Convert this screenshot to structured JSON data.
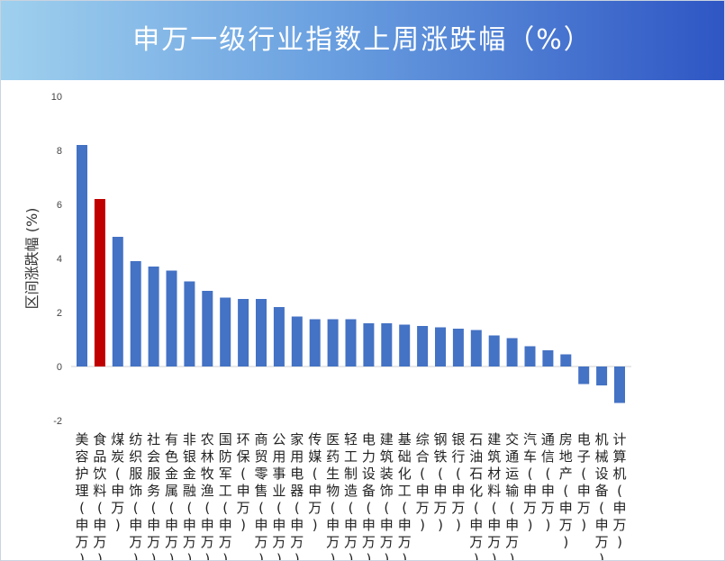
{
  "header": {
    "title": "申万一级行业指数上周涨跌幅（%）"
  },
  "colors": {
    "bar_default": "#4472c4",
    "bar_highlight": "#c00000",
    "header_start": "#9fd0ee",
    "header_end": "#2f56c4"
  },
  "chart_data": {
    "type": "bar",
    "title": "申万一级行业指数上周涨跌幅（%）",
    "ylabel": "区间涨跌幅 (%)",
    "xlabel": "",
    "ylim": [
      -2,
      10
    ],
    "yticks": [
      "-2",
      "0",
      "2",
      "4",
      "6",
      "8",
      "10"
    ],
    "grid": false,
    "highlight_index": 1,
    "categories": [
      "美容护理(申万)",
      "食品饮料(申万)",
      "煤炭(申万)",
      "纺织服饰(申万)",
      "社会服务(申万)",
      "有色金属(申万)",
      "非银金融(申万)",
      "农林牧渔(申万)",
      "国防军工(申万)",
      "环保(申万)",
      "商贸零售(申万)",
      "公用事业(申万)",
      "家用电器(申万)",
      "传媒(申万)",
      "医药生物(申万)",
      "轻工制造(申万)",
      "电力设备(申万)",
      "建筑装饰(申万)",
      "基础化工(申万)",
      "综合(申万)",
      "钢铁(申万)",
      "银行(申万)",
      "石油石化(申万)",
      "建筑材料(申万)",
      "交通运输(申万)",
      "汽车(申万)",
      "通信(申万)",
      "房地产(申万)",
      "电子(申万)",
      "机械设备(申万)",
      "计算机(申万)"
    ],
    "values": [
      8.2,
      6.2,
      4.8,
      3.9,
      3.7,
      3.55,
      3.15,
      2.8,
      2.55,
      2.5,
      2.5,
      2.2,
      1.85,
      1.75,
      1.75,
      1.75,
      1.6,
      1.6,
      1.55,
      1.5,
      1.45,
      1.4,
      1.35,
      1.15,
      1.05,
      0.75,
      0.6,
      0.45,
      -0.65,
      -0.7,
      -1.35
    ]
  }
}
